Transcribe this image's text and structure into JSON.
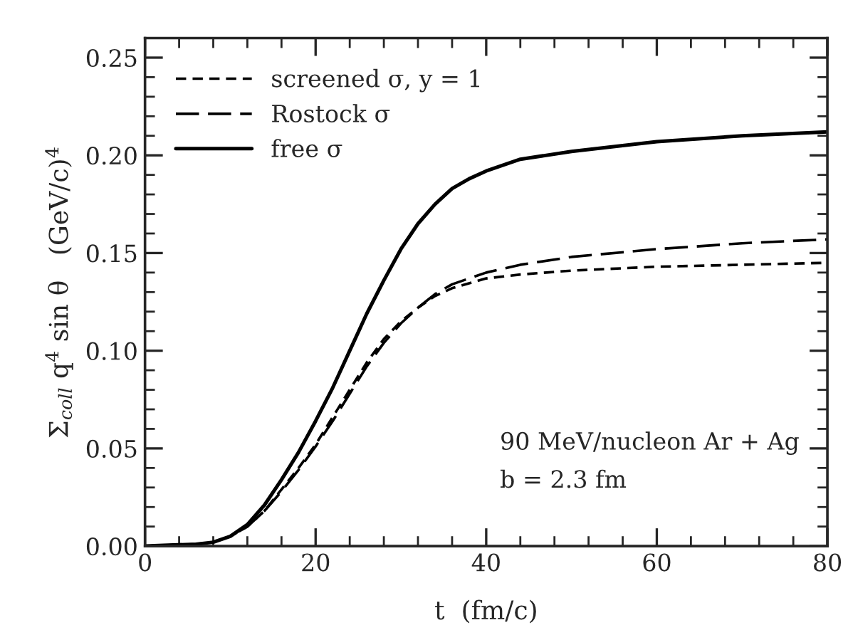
{
  "chart_data": {
    "type": "line",
    "xlabel": "t  (fm/c)",
    "ylabel": "Σ$_{coll}$ q$^{4}$ sin θ   (GeV/c)$^{4}$",
    "xlim": [
      0,
      80
    ],
    "ylim": [
      0,
      0.26
    ],
    "xticks": [
      0,
      20,
      40,
      60,
      80
    ],
    "yticks": [
      {
        "value": 0,
        "label": "0.00"
      },
      {
        "value": 0.05,
        "label": "0.05"
      },
      {
        "value": 0.1,
        "label": "0.10"
      },
      {
        "value": 0.15,
        "label": "0.15"
      },
      {
        "value": 0.2,
        "label": "0.20"
      },
      {
        "value": 0.25,
        "label": "0.25"
      }
    ],
    "grid": false,
    "legend": "top left",
    "marker": "none",
    "annotations": [
      "90 MeV/nucleon Ar + Ag",
      "b = 2.3 fm"
    ],
    "series": [
      {
        "name": "screened σ, y = 1",
        "color": "#000000",
        "line_style": "dashed",
        "x": [
          0,
          6,
          8,
          10,
          12,
          14,
          16,
          18,
          20,
          22,
          24,
          26,
          28,
          30,
          32,
          34,
          36,
          40,
          44,
          50,
          60,
          70,
          80
        ],
        "values": [
          0,
          0.001,
          0.002,
          0.005,
          0.01,
          0.018,
          0.029,
          0.04,
          0.052,
          0.066,
          0.08,
          0.094,
          0.106,
          0.115,
          0.122,
          0.128,
          0.132,
          0.137,
          0.139,
          0.141,
          0.143,
          0.144,
          0.145
        ]
      },
      {
        "name": "Rostock σ",
        "color": "#000000",
        "line_style": "longdash",
        "x": [
          0,
          6,
          8,
          10,
          12,
          14,
          16,
          18,
          20,
          22,
          24,
          26,
          28,
          30,
          32,
          34,
          36,
          40,
          44,
          50,
          60,
          70,
          80
        ],
        "values": [
          0,
          0.001,
          0.002,
          0.005,
          0.01,
          0.018,
          0.028,
          0.039,
          0.051,
          0.064,
          0.078,
          0.092,
          0.104,
          0.114,
          0.122,
          0.129,
          0.134,
          0.14,
          0.144,
          0.148,
          0.152,
          0.155,
          0.157
        ]
      },
      {
        "name": "free σ",
        "color": "#000000",
        "line_style": "solid",
        "x": [
          0,
          6,
          8,
          10,
          12,
          14,
          16,
          18,
          20,
          22,
          24,
          26,
          28,
          30,
          32,
          34,
          36,
          38,
          40,
          44,
          50,
          60,
          70,
          80
        ],
        "values": [
          0,
          0.001,
          0.002,
          0.005,
          0.011,
          0.021,
          0.034,
          0.048,
          0.064,
          0.081,
          0.1,
          0.119,
          0.136,
          0.152,
          0.165,
          0.175,
          0.183,
          0.188,
          0.192,
          0.198,
          0.202,
          0.207,
          0.21,
          0.212
        ]
      }
    ]
  }
}
